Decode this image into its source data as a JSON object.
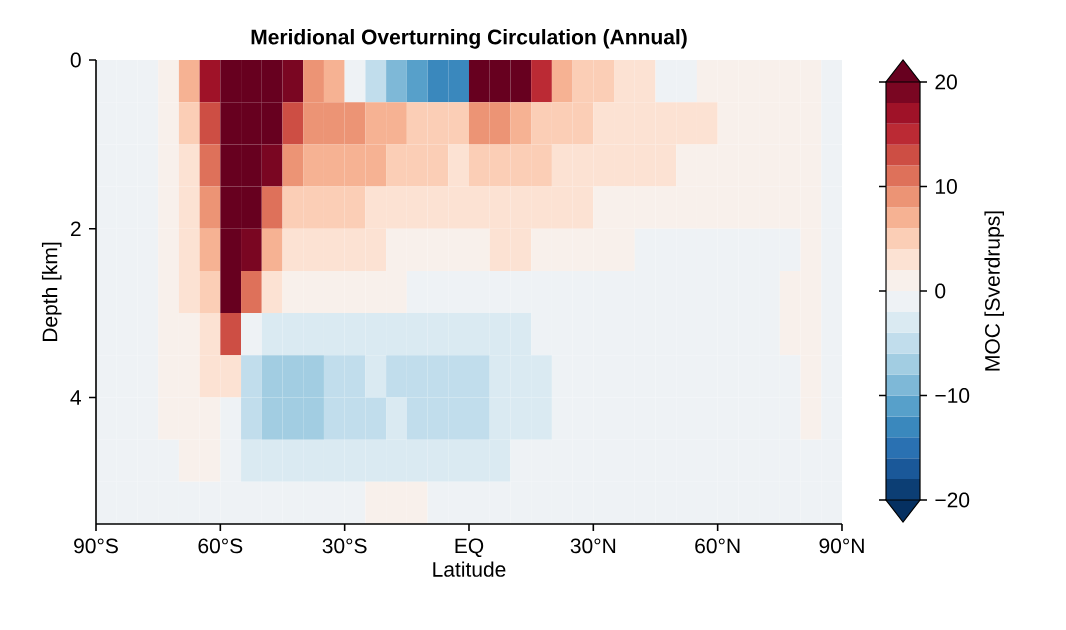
{
  "chart_data": {
    "type": "heatmap",
    "title": "Meridional Overturning Circulation (Annual)",
    "xlabel": "Latitude",
    "ylabel": "Depth [km]",
    "clabel": "MOC [Sverdrups]",
    "xlim": [
      -90,
      90
    ],
    "ylim": [
      5.5,
      0
    ],
    "xticks": [
      {
        "value": -90,
        "label": "90°S"
      },
      {
        "value": -60,
        "label": "60°S"
      },
      {
        "value": -30,
        "label": "30°S"
      },
      {
        "value": 0,
        "label": "EQ"
      },
      {
        "value": 30,
        "label": "30°N"
      },
      {
        "value": 60,
        "label": "60°N"
      },
      {
        "value": 90,
        "label": "90°N"
      }
    ],
    "yticks": [
      0,
      2,
      4
    ],
    "clim": [
      -20,
      20
    ],
    "cticks": [
      {
        "value": -20,
        "label": "−20"
      },
      {
        "value": -10,
        "label": "−10"
      },
      0,
      10,
      20
    ],
    "cells": [
      [
        -1,
        -1,
        -1,
        1,
        6,
        16,
        20,
        20,
        20,
        18,
        8,
        6,
        -2,
        -6,
        -10,
        -12,
        -14,
        -14,
        20,
        20,
        20,
        14,
        6,
        5,
        4,
        3,
        3,
        -2,
        -2,
        1,
        1,
        1,
        1,
        1,
        1,
        -1
      ],
      [
        -1,
        -1,
        -1,
        1,
        4,
        12,
        20,
        20,
        20,
        12,
        8,
        8,
        8,
        6,
        6,
        4,
        4,
        4,
        8,
        8,
        6,
        5,
        5,
        4,
        3,
        3,
        3,
        2,
        2,
        2,
        1,
        1,
        1,
        1,
        1,
        -1
      ],
      [
        -1,
        -1,
        -1,
        1,
        3,
        10,
        20,
        20,
        18,
        8,
        6,
        6,
        6,
        6,
        5,
        5,
        4,
        3,
        5,
        5,
        4,
        4,
        3,
        3,
        3,
        2,
        2,
        2,
        1,
        1,
        1,
        1,
        1,
        1,
        1,
        -1
      ],
      [
        -1,
        -1,
        -1,
        1,
        2,
        8,
        20,
        20,
        10,
        4,
        4,
        4,
        4,
        3,
        3,
        3,
        3,
        2,
        3,
        3,
        3,
        2,
        2,
        2,
        1,
        1,
        1,
        1,
        1,
        1,
        1,
        1,
        1,
        1,
        1,
        -1
      ],
      [
        -1,
        -1,
        -1,
        1,
        2,
        6,
        20,
        18,
        6,
        3,
        2,
        2,
        2,
        2,
        1,
        1,
        1,
        1,
        1,
        2,
        2,
        1,
        1,
        1,
        1,
        1,
        -1,
        -1,
        -1,
        -1,
        -1,
        -1,
        -1,
        -1,
        1,
        -1
      ],
      [
        -1,
        -1,
        -1,
        1,
        2,
        4,
        20,
        10,
        3,
        1,
        1,
        1,
        1,
        1,
        1,
        -1,
        -1,
        -1,
        -1,
        -1,
        -1,
        -1,
        -1,
        -1,
        -1,
        -1,
        -1,
        -1,
        -1,
        -1,
        -1,
        -1,
        -1,
        1,
        1,
        -1
      ],
      [
        -1,
        -1,
        -1,
        1,
        1,
        3,
        12,
        -2,
        -3,
        -3,
        -3,
        -3,
        -3,
        -3,
        -3,
        -3,
        -3,
        -3,
        -3,
        -3,
        -3,
        -1,
        -1,
        -1,
        -1,
        -1,
        -1,
        -1,
        -1,
        -1,
        -1,
        -1,
        -1,
        1,
        1,
        -1
      ],
      [
        -1,
        -1,
        -1,
        1,
        1,
        2,
        3,
        -5,
        -7,
        -7,
        -7,
        -5,
        -5,
        -3,
        -5,
        -5,
        -5,
        -5,
        -5,
        -3,
        -3,
        -3,
        -1,
        -1,
        -1,
        -1,
        -1,
        -1,
        -1,
        -1,
        -1,
        -1,
        -1,
        -1,
        1,
        -1
      ],
      [
        -1,
        -1,
        -1,
        1,
        1,
        1,
        -1,
        -5,
        -7,
        -7,
        -7,
        -5,
        -5,
        -5,
        -3,
        -5,
        -5,
        -5,
        -5,
        -3,
        -3,
        -3,
        -1,
        -1,
        -1,
        -1,
        -1,
        -1,
        -1,
        -1,
        -1,
        -1,
        -1,
        -1,
        1,
        -1
      ],
      [
        -1,
        -1,
        -1,
        -1,
        1,
        1,
        -1,
        -3,
        -3,
        -3,
        -3,
        -3,
        -3,
        -3,
        -3,
        -3,
        -3,
        -3,
        -3,
        -3,
        -1,
        -1,
        -1,
        -1,
        -1,
        -1,
        -1,
        -1,
        -1,
        -1,
        -1,
        -1,
        -1,
        -1,
        -1,
        -1
      ],
      [
        -1,
        -1,
        -1,
        -1,
        -1,
        -1,
        -1,
        -1,
        -1,
        -1,
        -1,
        -1,
        -1,
        1,
        1,
        1,
        -1,
        -1,
        -1,
        -1,
        -1,
        -1,
        -1,
        -1,
        -1,
        -1,
        -1,
        -1,
        -1,
        -1,
        -1,
        -1,
        -1,
        -1,
        -1,
        -1
      ]
    ]
  }
}
